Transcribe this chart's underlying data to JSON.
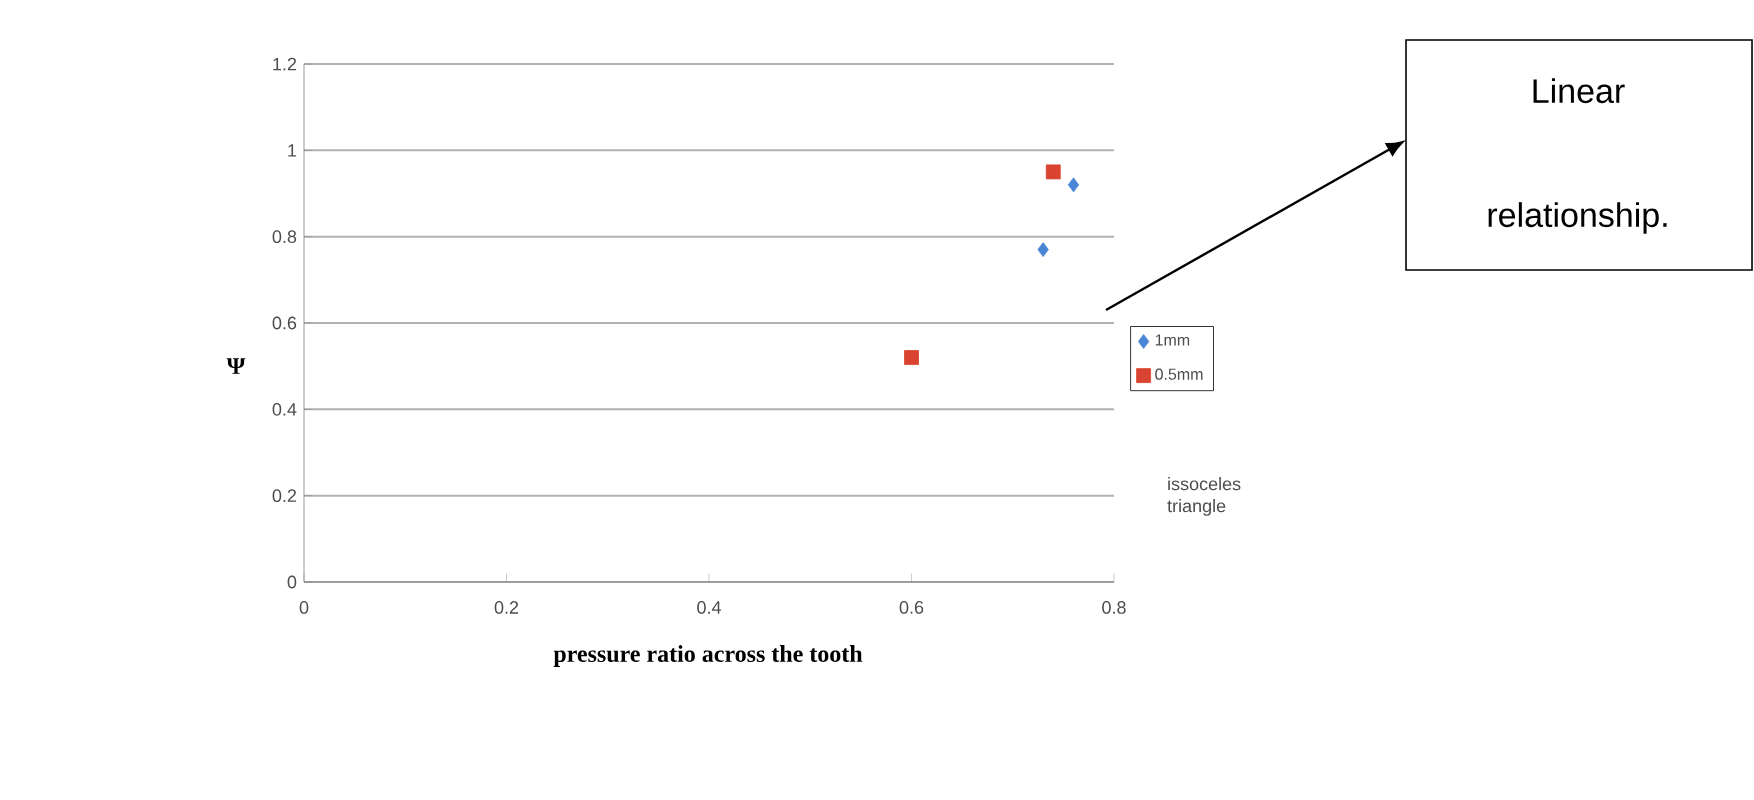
{
  "chart_data": {
    "type": "scatter",
    "xlabel": "pressure ratio across the tooth",
    "ylabel": "Ψ",
    "xlim": [
      0,
      0.8
    ],
    "ylim": [
      0,
      1.2
    ],
    "xticks": [
      0,
      0.2,
      0.4,
      0.6,
      0.8
    ],
    "yticks": [
      0,
      0.2,
      0.4,
      0.6,
      0.8,
      1,
      1.2
    ],
    "grid": "y",
    "legend": "right",
    "series": [
      {
        "name": "1mm",
        "color": "#4a86d6",
        "marker": "diamond",
        "x": [
          0.73,
          0.76
        ],
        "values": [
          0.77,
          0.92
        ]
      },
      {
        "name": "0.5mm",
        "color": "#d9432f",
        "marker": "square",
        "x": [
          0.6,
          0.74
        ],
        "values": [
          0.52,
          0.95
        ]
      }
    ],
    "annotations": [
      "Linear relationship.",
      "issoceles triangle"
    ]
  }
}
